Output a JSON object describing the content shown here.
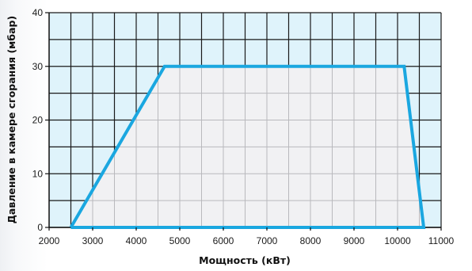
{
  "chart_data": {
    "type": "area",
    "title": "",
    "xlabel": "Мощность (кВт)",
    "ylabel": "Давление в камере сгорания (мбар)",
    "xlim": [
      2000,
      11000
    ],
    "ylim": [
      0,
      40
    ],
    "x_ticks": [
      2000,
      3000,
      4000,
      5000,
      6000,
      7000,
      8000,
      9000,
      10000,
      11000
    ],
    "y_ticks": [
      0,
      10,
      20,
      30,
      40
    ],
    "grid": true,
    "legend": "none",
    "series": [
      {
        "x": [
          2500,
          4650,
          10150,
          10600,
          2500
        ],
        "y": [
          0,
          30,
          30,
          0,
          0
        ]
      }
    ],
    "colors": {
      "outline": "#1aa7e0",
      "fill": "#f1f1f3",
      "outside_fill": "#dff3fb",
      "grid_outside": "#1a1a1a",
      "grid_inside": "#b9b9bd"
    }
  }
}
